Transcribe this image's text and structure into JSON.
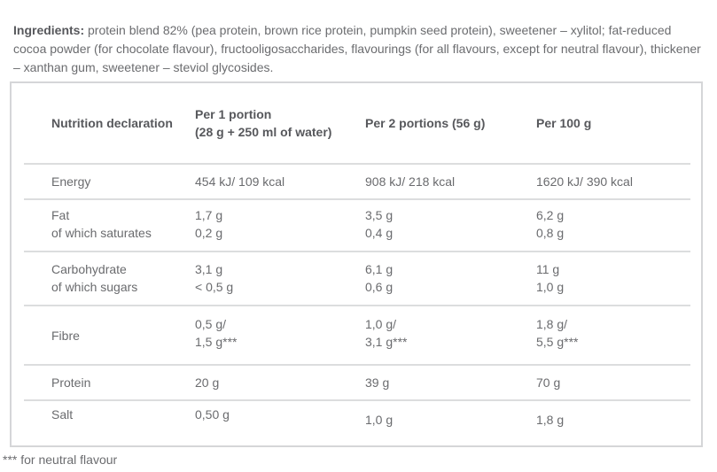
{
  "ingredients": {
    "label": "Ingredients:",
    "text": "protein blend 82% (pea protein, brown rice protein, pumpkin seed protein), sweetener – xylitol; fat-reduced cocoa powder (for chocolate flavour), fructooligosaccharides, flavourings (for all flavours, except for neutral flavour), thickener – xanthan gum, sweetener – steviol glycosides."
  },
  "table": {
    "header": {
      "label": "Nutrition declaration",
      "col1": [
        "Per 1 portion",
        "(28 g + 250 ml of water)"
      ],
      "col2": "Per 2 portions (56 g)",
      "col3": "Per 100 g"
    },
    "rows": [
      {
        "cells": [
          [
            "Energy"
          ],
          [
            "454 kJ/ 109 kcal"
          ],
          [
            "908 kJ/ 218 kcal"
          ],
          [
            "1620 kJ/ 390 kcal"
          ]
        ]
      },
      {
        "cells": [
          [
            "Fat",
            "of which saturates"
          ],
          [
            "1,7 g",
            "0,2 g"
          ],
          [
            "3,5 g",
            "0,4 g"
          ],
          [
            "6,2 g",
            "0,8 g"
          ]
        ]
      },
      {
        "cells": [
          [
            "Carbohydrate",
            "of which sugars"
          ],
          [
            "3,1 g",
            "< 0,5 g"
          ],
          [
            "6,1 g",
            "0,6 g"
          ],
          [
            "11 g",
            "1,0 g"
          ]
        ]
      },
      {
        "cells": [
          [
            "Fibre"
          ],
          [
            "0,5 g/",
            "1,5 g***"
          ],
          [
            "1,0 g/",
            "3,1 g***"
          ],
          [
            "1,8 g/",
            "5,5 g***"
          ]
        ]
      },
      {
        "cells": [
          [
            "Protein"
          ],
          [
            "20 g"
          ],
          [
            "39 g"
          ],
          [
            "70 g"
          ]
        ]
      },
      {
        "cells": [
          [
            "Salt"
          ],
          [
            "0,50 g"
          ],
          [
            "1,0 g"
          ],
          [
            "1,8 g"
          ]
        ]
      }
    ]
  },
  "footnote": "*** for neutral flavour",
  "colors": {
    "body_text": "#6b6c6f",
    "heading_text": "#57585c",
    "table_border": "#d5d6d8",
    "row_separator": "#dcddde",
    "background": "#ffffff"
  }
}
